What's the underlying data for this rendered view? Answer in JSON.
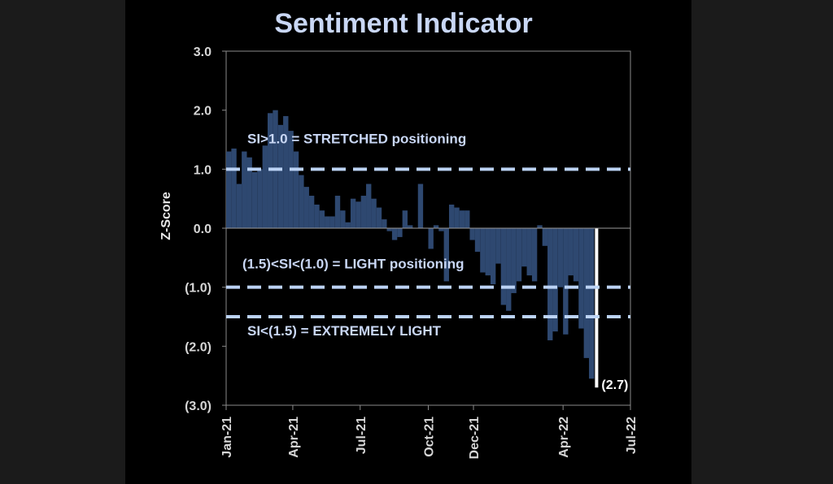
{
  "colors": {
    "background": "#000000",
    "bars": "#2e4870",
    "threshold_lines": "#bcd3f5",
    "last_bar": "#ffffff",
    "axis": "#8a8a8a"
  },
  "chart_data": {
    "type": "bar",
    "title": "Sentiment Indicator",
    "xlabel": "",
    "ylabel": "Z-Score",
    "ylim": [
      -3,
      3
    ],
    "yticks": [
      3,
      2,
      1,
      0,
      -1,
      -2,
      -3
    ],
    "ytick_labels": [
      "3.0",
      "2.0",
      "1.0",
      "0.0",
      "(1.0)",
      "(2.0)",
      "(3.0)"
    ],
    "x_start": "2021-01-01",
    "x_end": "2022-07-01",
    "xticks": [
      "2021-01-01",
      "2021-04-01",
      "2021-07-01",
      "2021-10-01",
      "2021-12-01",
      "2022-04-01",
      "2022-07-01"
    ],
    "xtick_labels": [
      "Jan-21",
      "Apr-21",
      "Jul-21",
      "Oct-21",
      "Dec-21",
      "Apr-22",
      "Jul-22"
    ],
    "grid": false,
    "series": [
      {
        "dates": [
          "2021-01-01",
          "2021-01-08",
          "2021-01-15",
          "2021-01-22",
          "2021-01-29",
          "2021-02-05",
          "2021-02-12",
          "2021-02-19",
          "2021-02-26",
          "2021-03-05",
          "2021-03-12",
          "2021-03-19",
          "2021-03-26",
          "2021-04-02",
          "2021-04-09",
          "2021-04-16",
          "2021-04-23",
          "2021-04-30",
          "2021-05-07",
          "2021-05-14",
          "2021-05-21",
          "2021-05-28",
          "2021-06-04",
          "2021-06-11",
          "2021-06-18",
          "2021-06-25",
          "2021-07-02",
          "2021-07-09",
          "2021-07-16",
          "2021-07-23",
          "2021-07-30",
          "2021-08-06",
          "2021-08-13",
          "2021-08-20",
          "2021-08-27",
          "2021-09-03",
          "2021-09-10",
          "2021-09-17",
          "2021-09-24",
          "2021-10-01",
          "2021-10-08",
          "2021-10-15",
          "2021-10-22",
          "2021-10-29",
          "2021-11-05",
          "2021-11-12",
          "2021-11-19",
          "2021-11-26",
          "2021-12-03",
          "2021-12-10",
          "2021-12-17",
          "2021-12-24",
          "2021-12-31",
          "2022-01-07",
          "2022-01-14",
          "2022-01-21",
          "2022-01-28",
          "2022-02-04",
          "2022-02-11",
          "2022-02-18",
          "2022-02-25",
          "2022-03-04",
          "2022-03-11",
          "2022-03-18",
          "2022-03-25",
          "2022-04-01",
          "2022-04-08",
          "2022-04-15",
          "2022-04-22",
          "2022-04-29",
          "2022-05-06",
          "2022-05-13"
        ],
        "values": [
          1.3,
          1.35,
          0.75,
          1.3,
          1.2,
          0.95,
          1.0,
          1.4,
          1.95,
          2.0,
          1.75,
          1.9,
          1.65,
          1.3,
          0.9,
          0.7,
          0.55,
          0.4,
          0.3,
          0.2,
          0.2,
          0.55,
          0.3,
          0.1,
          0.5,
          0.45,
          0.55,
          0.75,
          0.5,
          0.35,
          0.15,
          -0.05,
          -0.2,
          -0.15,
          0.3,
          0.05,
          0.0,
          0.75,
          0.0,
          -0.35,
          0.05,
          -0.05,
          -0.9,
          0.4,
          0.35,
          0.3,
          0.3,
          -0.2,
          -0.4,
          -0.75,
          -0.8,
          -0.95,
          -0.6,
          -1.3,
          -1.4,
          -1.1,
          -0.9,
          -0.65,
          -0.8,
          -0.9,
          0.05,
          -0.3,
          -1.9,
          -1.75,
          -1.0,
          -1.8,
          -0.8,
          -0.9,
          -1.7,
          -2.2,
          -2.55,
          -2.7
        ]
      }
    ],
    "last_value_label": "(2.7)",
    "thresholds": [
      {
        "value": 1.0,
        "label": "SI>1.0 = STRETCHED positioning"
      },
      {
        "value": -1.0,
        "label": "(1.5)<SI<(1.0) = LIGHT positioning"
      },
      {
        "value": -1.5,
        "label": "SI<(1.5) = EXTREMELY LIGHT"
      }
    ]
  }
}
